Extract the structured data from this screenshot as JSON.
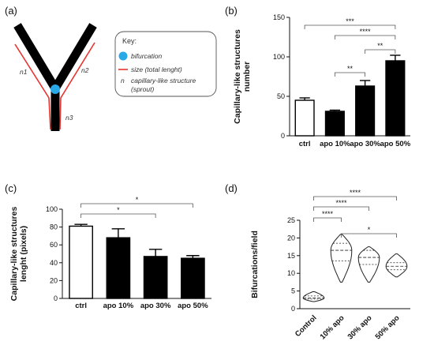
{
  "panels": {
    "a": "(a)",
    "b": "(b)",
    "c": "(c)",
    "d": "(d)"
  },
  "schematic": {
    "branch_labels": [
      "n1",
      "n2",
      "n3"
    ],
    "key_title": "Key:",
    "key_items": [
      {
        "symbol": "circle",
        "color": "#29a9e8",
        "text": "bifurcation"
      },
      {
        "symbol": "line",
        "color": "#e8332f",
        "text": "size (total lenght)"
      },
      {
        "symbol": "n",
        "text": "capillary-like structure (sprout)",
        "lines": [
          "capillary-like structure",
          "(sprout)"
        ]
      }
    ]
  },
  "chart_data": [
    {
      "panel": "b",
      "type": "bar",
      "ylabel": "Capillary-like structures number",
      "ylabel_lines": [
        "Capillary-like structures",
        "number"
      ],
      "categories": [
        "ctrl",
        "apo 10%",
        "apo 30%",
        "apo 50%"
      ],
      "values": [
        45,
        31,
        63,
        95
      ],
      "errors": [
        3,
        1.5,
        7,
        7
      ],
      "fills": [
        "#ffffff",
        "#000000",
        "#000000",
        "#000000"
      ],
      "ylim": [
        0,
        150
      ],
      "yticks": [
        0,
        50,
        100,
        150
      ],
      "significance": [
        {
          "from": 0,
          "to": 3,
          "label": "***"
        },
        {
          "from": 1,
          "to": 3,
          "label": "****"
        },
        {
          "from": 1,
          "to": 2,
          "label": "**"
        },
        {
          "from": 2,
          "to": 3,
          "label": "**"
        }
      ]
    },
    {
      "panel": "c",
      "type": "bar",
      "ylabel": "Capillary-like structures lenght (pixels)",
      "ylabel_lines": [
        "Capillary-like structures",
        "lenght (pixels)"
      ],
      "categories": [
        "ctrl",
        "apo 10%",
        "apo 30%",
        "apo 50%"
      ],
      "values": [
        81,
        68,
        47,
        45
      ],
      "errors": [
        2,
        10,
        8,
        3
      ],
      "fills": [
        "#ffffff",
        "#000000",
        "#000000",
        "#000000"
      ],
      "ylim": [
        0,
        100
      ],
      "yticks": [
        0,
        20,
        40,
        60,
        80,
        100
      ],
      "significance": [
        {
          "from": 0,
          "to": 3,
          "label": "*"
        },
        {
          "from": 0,
          "to": 2,
          "label": "*"
        }
      ]
    },
    {
      "panel": "d",
      "type": "violin",
      "ylabel": "Bifurcations/field",
      "categories": [
        "Control",
        "10% apo",
        "30% apo",
        "50% apo"
      ],
      "ylim": [
        0,
        25
      ],
      "yticks": [
        0,
        5,
        10,
        15,
        20,
        25
      ],
      "violins": [
        {
          "min": 2.0,
          "q1": 2.7,
          "median": 3.0,
          "q3": 3.6,
          "max": 4.8
        },
        {
          "min": 7.5,
          "q1": 13.5,
          "median": 16.5,
          "q3": 18.5,
          "max": 21.0
        },
        {
          "min": 7.5,
          "q1": 12.5,
          "median": 14.5,
          "q3": 16.5,
          "max": 17.5
        },
        {
          "min": 9.0,
          "q1": 11.0,
          "median": 12.0,
          "q3": 13.0,
          "max": 15.5
        }
      ],
      "significance": [
        {
          "from": 0,
          "to": 3,
          "label": "****"
        },
        {
          "from": 0,
          "to": 2,
          "label": "****"
        },
        {
          "from": 0,
          "to": 1,
          "label": "****"
        },
        {
          "from": 1,
          "to": 3,
          "label": "*"
        }
      ]
    }
  ]
}
